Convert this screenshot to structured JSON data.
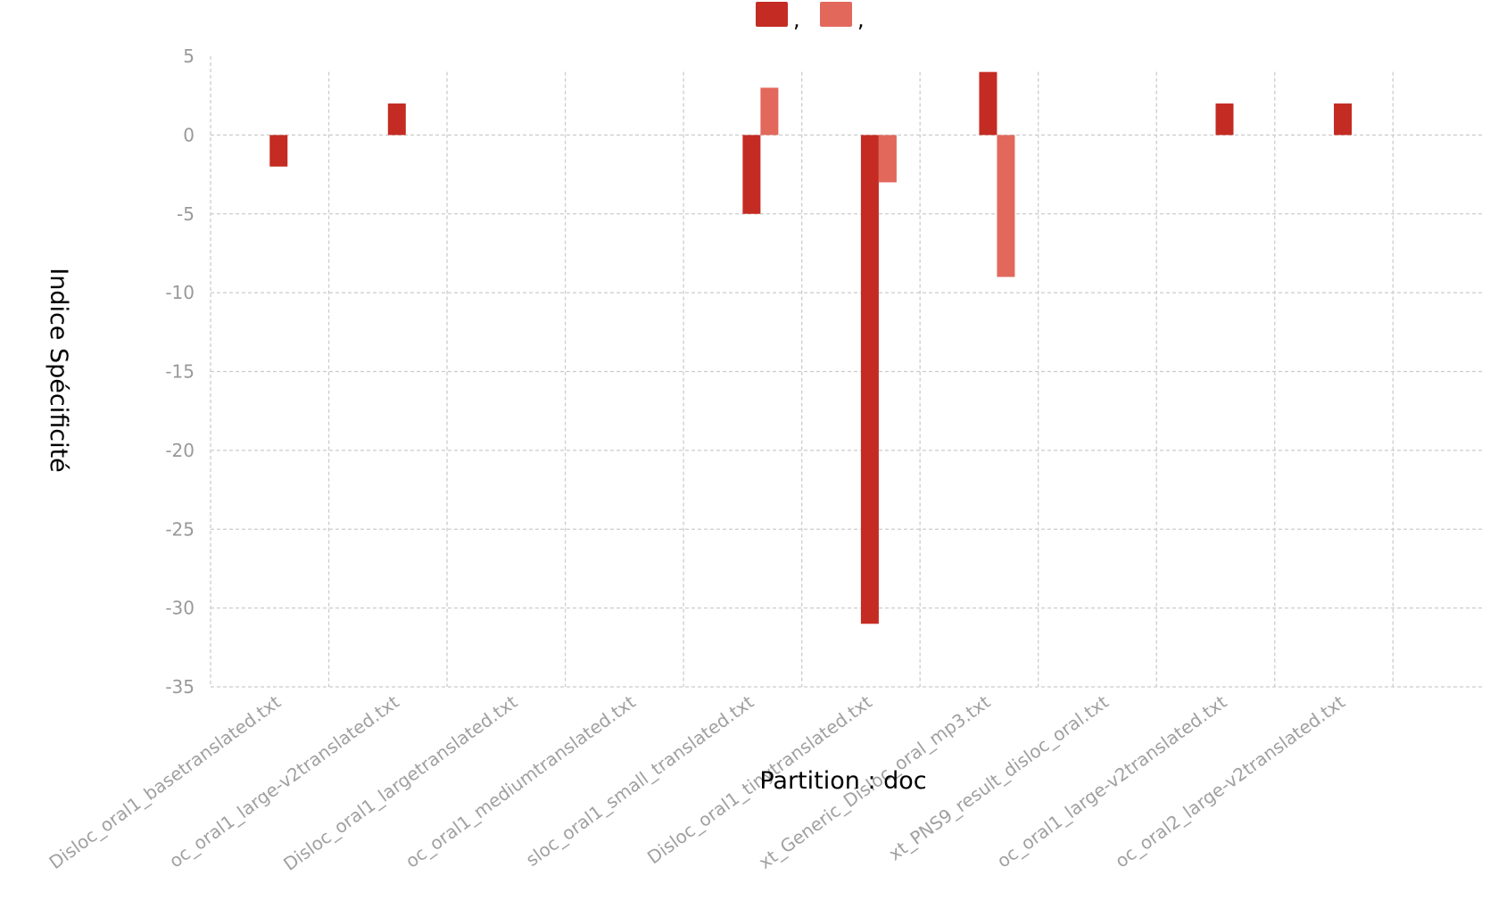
{
  "chart_data": {
    "type": "bar",
    "title": "",
    "xlabel": "Partition : doc",
    "ylabel": "Indice Spécificité",
    "ylim": [
      -35,
      5
    ],
    "yticks": [
      5,
      0,
      -5,
      -10,
      -15,
      -20,
      -25,
      -30,
      -35
    ],
    "grid": true,
    "legend_position": "top-center",
    "categories": [
      "Disloc_oral1_basetranslated.txt",
      "oc_oral1_large-v2translated.txt",
      "Disloc_oral1_largetranslated.txt",
      "oc_oral1_mediumtranslated.txt",
      "sloc_oral1_small_translated.txt",
      "Disloc_oral1_tinytranslated.txt",
      "xt_Generic_Disloc_oral_mp3.txt",
      "xt_PNS9_result_disloc_oral.txt",
      "oc_oral1_large-v2translated.txt",
      "oc_oral2_large-v2translated.txt"
    ],
    "series": [
      {
        "name": ",",
        "color": "#c42b22",
        "values": [
          -2,
          2,
          0,
          0,
          -5,
          -31,
          4,
          0,
          2,
          2
        ]
      },
      {
        "name": ",",
        "color": "#e2685b",
        "values": [
          0,
          0,
          0,
          0,
          3,
          -3,
          -9,
          0,
          0,
          0
        ]
      }
    ]
  }
}
